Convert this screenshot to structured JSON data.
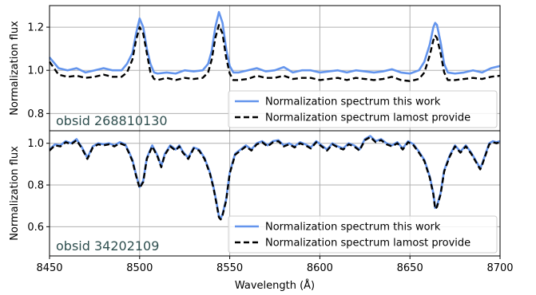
{
  "chart_data": [
    {
      "type": "line",
      "ylabel": "Normalization flux",
      "xlim": [
        8450,
        8700
      ],
      "ylim": [
        0.72,
        1.3
      ],
      "yticks": [
        0.8,
        1.0,
        1.2
      ],
      "ytick_labels": [
        "0.8",
        "1.0",
        "1.2"
      ],
      "grid": true,
      "legend_position": "lower-right",
      "annotation": "obsid 268810130",
      "annotation_color": "#2f4f4f",
      "series": [
        {
          "name": "Normalization spectrum this work",
          "color": "#6495ed",
          "style": "solid",
          "x": [
            8450,
            8455,
            8460,
            8465,
            8470,
            8475,
            8480,
            8485,
            8490,
            8493,
            8496,
            8498,
            8500,
            8502,
            8504,
            8506,
            8508,
            8510,
            8515,
            8520,
            8525,
            8530,
            8535,
            8538,
            8540,
            8542,
            8544,
            8546,
            8548,
            8550,
            8552,
            8555,
            8560,
            8565,
            8570,
            8575,
            8580,
            8585,
            8590,
            8595,
            8600,
            8605,
            8610,
            8615,
            8620,
            8625,
            8630,
            8635,
            8640,
            8645,
            8650,
            8655,
            8658,
            8661,
            8663,
            8664,
            8665,
            8667,
            8669,
            8671,
            8675,
            8680,
            8685,
            8690,
            8695,
            8700
          ],
          "y": [
            1.06,
            1.01,
            1.0,
            1.01,
            0.99,
            1.0,
            1.01,
            1.0,
            1.0,
            1.03,
            1.08,
            1.17,
            1.24,
            1.2,
            1.1,
            1.03,
            0.99,
            0.985,
            0.99,
            0.985,
            1.0,
            0.995,
            1.0,
            1.03,
            1.09,
            1.2,
            1.27,
            1.22,
            1.1,
            1.02,
            0.99,
            0.99,
            1.0,
            1.01,
            0.995,
            1.0,
            1.015,
            0.99,
            1.0,
            1.0,
            0.99,
            0.995,
            1.0,
            0.99,
            1.0,
            0.995,
            0.99,
            0.995,
            1.005,
            0.99,
            0.985,
            1.0,
            1.04,
            1.12,
            1.2,
            1.22,
            1.21,
            1.13,
            1.03,
            0.99,
            0.985,
            0.99,
            1.0,
            0.99,
            1.01,
            1.02
          ]
        },
        {
          "name": "Normalization spectrum lamost provide",
          "color": "#000000",
          "style": "dashed",
          "x": [
            8450,
            8455,
            8460,
            8465,
            8470,
            8475,
            8480,
            8485,
            8490,
            8493,
            8496,
            8498,
            8500,
            8502,
            8504,
            8506,
            8508,
            8510,
            8515,
            8520,
            8525,
            8530,
            8535,
            8538,
            8540,
            8542,
            8544,
            8546,
            8548,
            8550,
            8552,
            8555,
            8560,
            8565,
            8570,
            8575,
            8580,
            8585,
            8590,
            8595,
            8600,
            8605,
            8610,
            8615,
            8620,
            8625,
            8630,
            8635,
            8640,
            8645,
            8650,
            8655,
            8658,
            8661,
            8663,
            8664,
            8665,
            8667,
            8669,
            8671,
            8675,
            8680,
            8685,
            8690,
            8695,
            8700
          ],
          "y": [
            1.04,
            0.98,
            0.97,
            0.975,
            0.965,
            0.97,
            0.98,
            0.97,
            0.97,
            0.99,
            1.05,
            1.14,
            1.2,
            1.17,
            1.08,
            0.99,
            0.96,
            0.955,
            0.965,
            0.955,
            0.965,
            0.96,
            0.965,
            0.99,
            1.05,
            1.15,
            1.21,
            1.17,
            1.06,
            0.985,
            0.955,
            0.955,
            0.96,
            0.975,
            0.965,
            0.965,
            0.975,
            0.96,
            0.965,
            0.965,
            0.955,
            0.96,
            0.965,
            0.955,
            0.965,
            0.96,
            0.955,
            0.96,
            0.97,
            0.955,
            0.95,
            0.96,
            0.99,
            1.07,
            1.14,
            1.16,
            1.15,
            1.08,
            0.99,
            0.955,
            0.955,
            0.96,
            0.965,
            0.96,
            0.97,
            0.975
          ]
        }
      ]
    },
    {
      "type": "line",
      "xlabel": "Wavelength (Å)",
      "ylabel": "Normalization flux",
      "xlim": [
        8450,
        8700
      ],
      "ylim": [
        0.46,
        1.06
      ],
      "xticks": [
        8450,
        8500,
        8550,
        8600,
        8650,
        8700
      ],
      "xtick_labels": [
        "8450",
        "8500",
        "8550",
        "8600",
        "8650",
        "8700"
      ],
      "yticks": [
        0.6,
        0.8,
        1.0
      ],
      "ytick_labels": [
        "0.6",
        "0.8",
        "1.0"
      ],
      "grid": true,
      "legend_position": "lower-right",
      "annotation": "obsid 34202109",
      "annotation_color": "#2f4f4f",
      "series": [
        {
          "name": "Normalization spectrum this work",
          "color": "#6495ed",
          "style": "solid",
          "x": [
            8450,
            8453,
            8456,
            8459,
            8462,
            8465,
            8468,
            8471,
            8474,
            8477,
            8480,
            8483,
            8486,
            8489,
            8492,
            8494,
            8496,
            8498,
            8500,
            8502,
            8504,
            8507,
            8510,
            8512,
            8514,
            8517,
            8520,
            8522,
            8524,
            8527,
            8530,
            8533,
            8536,
            8539,
            8541,
            8543,
            8544,
            8545,
            8546,
            8548,
            8550,
            8553,
            8556,
            8559,
            8562,
            8565,
            8568,
            8571,
            8574,
            8577,
            8580,
            8583,
            8586,
            8589,
            8592,
            8595,
            8598,
            8601,
            8604,
            8607,
            8610,
            8613,
            8616,
            8619,
            8622,
            8625,
            8628,
            8631,
            8634,
            8637,
            8640,
            8643,
            8646,
            8649,
            8652,
            8655,
            8658,
            8661,
            8663,
            8664,
            8665,
            8667,
            8669,
            8672,
            8675,
            8678,
            8681,
            8684,
            8687,
            8689,
            8690,
            8692,
            8694,
            8696,
            8698,
            8700
          ],
          "y": [
            0.97,
            0.995,
            0.99,
            1.01,
            1.0,
            1.02,
            0.98,
            0.93,
            0.985,
            1.0,
            0.995,
            1.0,
            0.99,
            1.005,
            0.995,
            0.96,
            0.92,
            0.85,
            0.79,
            0.82,
            0.93,
            0.99,
            0.94,
            0.89,
            0.95,
            0.99,
            0.97,
            0.99,
            0.96,
            0.93,
            0.98,
            0.97,
            0.93,
            0.86,
            0.79,
            0.7,
            0.65,
            0.64,
            0.66,
            0.73,
            0.86,
            0.95,
            0.97,
            0.99,
            0.97,
            1.0,
            1.01,
            0.99,
            1.01,
            1.015,
            0.99,
            1.0,
            0.985,
            1.005,
            0.995,
            0.98,
            1.01,
            0.99,
            0.97,
            1.0,
            0.985,
            0.975,
            1.0,
            0.99,
            0.97,
            1.02,
            1.035,
            1.01,
            1.02,
            1.0,
            0.99,
            1.005,
            0.975,
            1.01,
            0.995,
            0.96,
            0.92,
            0.84,
            0.76,
            0.69,
            0.7,
            0.76,
            0.87,
            0.94,
            0.99,
            0.96,
            0.99,
            0.955,
            0.91,
            0.88,
            0.9,
            0.95,
            1.0,
            1.01,
            1.005,
            1.01
          ]
        },
        {
          "name": "Normalization spectrum lamost provide",
          "color": "#000000",
          "style": "dashed",
          "x": [
            8450,
            8453,
            8456,
            8459,
            8462,
            8465,
            8468,
            8471,
            8474,
            8477,
            8480,
            8483,
            8486,
            8489,
            8492,
            8494,
            8496,
            8498,
            8500,
            8502,
            8504,
            8507,
            8510,
            8512,
            8514,
            8517,
            8520,
            8522,
            8524,
            8527,
            8530,
            8533,
            8536,
            8539,
            8541,
            8543,
            8544,
            8545,
            8546,
            8548,
            8550,
            8553,
            8556,
            8559,
            8562,
            8565,
            8568,
            8571,
            8574,
            8577,
            8580,
            8583,
            8586,
            8589,
            8592,
            8595,
            8598,
            8601,
            8604,
            8607,
            8610,
            8613,
            8616,
            8619,
            8622,
            8625,
            8628,
            8631,
            8634,
            8637,
            8640,
            8643,
            8646,
            8649,
            8652,
            8655,
            8658,
            8661,
            8663,
            8664,
            8665,
            8667,
            8669,
            8672,
            8675,
            8678,
            8681,
            8684,
            8687,
            8689,
            8690,
            8692,
            8694,
            8696,
            8698,
            8700
          ],
          "y": [
            0.965,
            0.99,
            0.985,
            1.005,
            0.995,
            1.015,
            0.975,
            0.925,
            0.98,
            0.995,
            0.99,
            0.995,
            0.985,
            1.0,
            0.99,
            0.955,
            0.915,
            0.845,
            0.785,
            0.815,
            0.925,
            0.985,
            0.935,
            0.885,
            0.945,
            0.985,
            0.965,
            0.985,
            0.955,
            0.925,
            0.975,
            0.965,
            0.925,
            0.855,
            0.785,
            0.695,
            0.645,
            0.635,
            0.655,
            0.725,
            0.855,
            0.945,
            0.965,
            0.985,
            0.965,
            0.995,
            1.005,
            0.985,
            1.005,
            1.01,
            0.985,
            0.995,
            0.98,
            1.0,
            0.99,
            0.975,
            1.005,
            0.985,
            0.965,
            0.995,
            0.98,
            0.97,
            0.995,
            0.985,
            0.965,
            1.015,
            1.03,
            1.005,
            1.015,
            0.995,
            0.985,
            1.0,
            0.97,
            1.005,
            0.99,
            0.955,
            0.915,
            0.835,
            0.755,
            0.685,
            0.695,
            0.755,
            0.865,
            0.935,
            0.985,
            0.955,
            0.985,
            0.95,
            0.905,
            0.875,
            0.895,
            0.945,
            0.995,
            1.005,
            1.0,
            1.005
          ]
        }
      ]
    }
  ]
}
